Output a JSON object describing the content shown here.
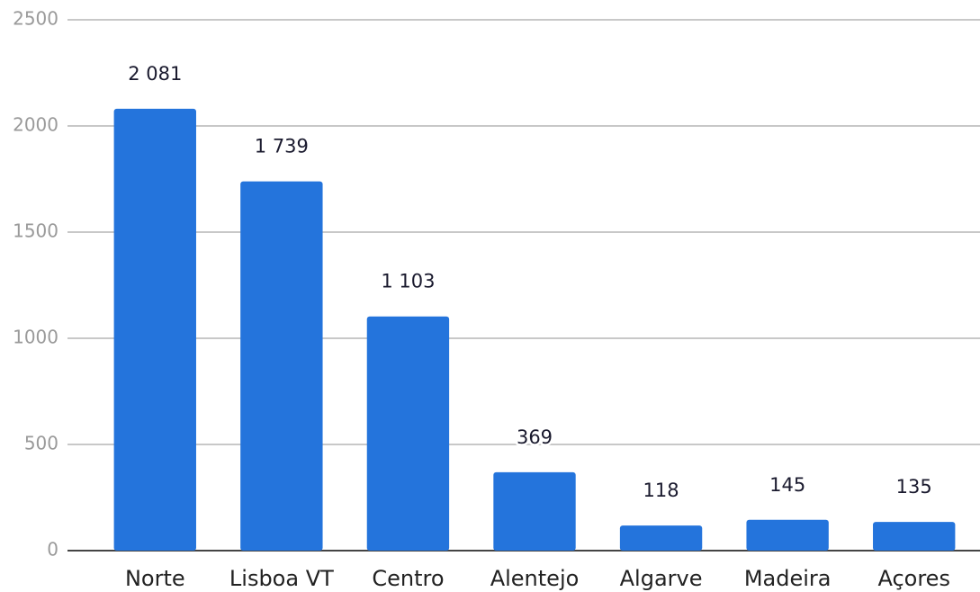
{
  "chart_data": {
    "type": "bar",
    "categories": [
      "Norte",
      "Lisboa VT",
      "Centro",
      "Alentejo",
      "Algarve",
      "Madeira",
      "Açores"
    ],
    "values": [
      2081,
      1739,
      1103,
      369,
      118,
      145,
      135
    ],
    "value_labels": [
      "2 081",
      "1 739",
      "1 103",
      "369",
      "118",
      "145",
      "135"
    ],
    "color": "#2474dc",
    "ylim": [
      0,
      2500
    ],
    "yticks": [
      0,
      500,
      1000,
      1500,
      2000,
      2500
    ],
    "grid": true
  }
}
